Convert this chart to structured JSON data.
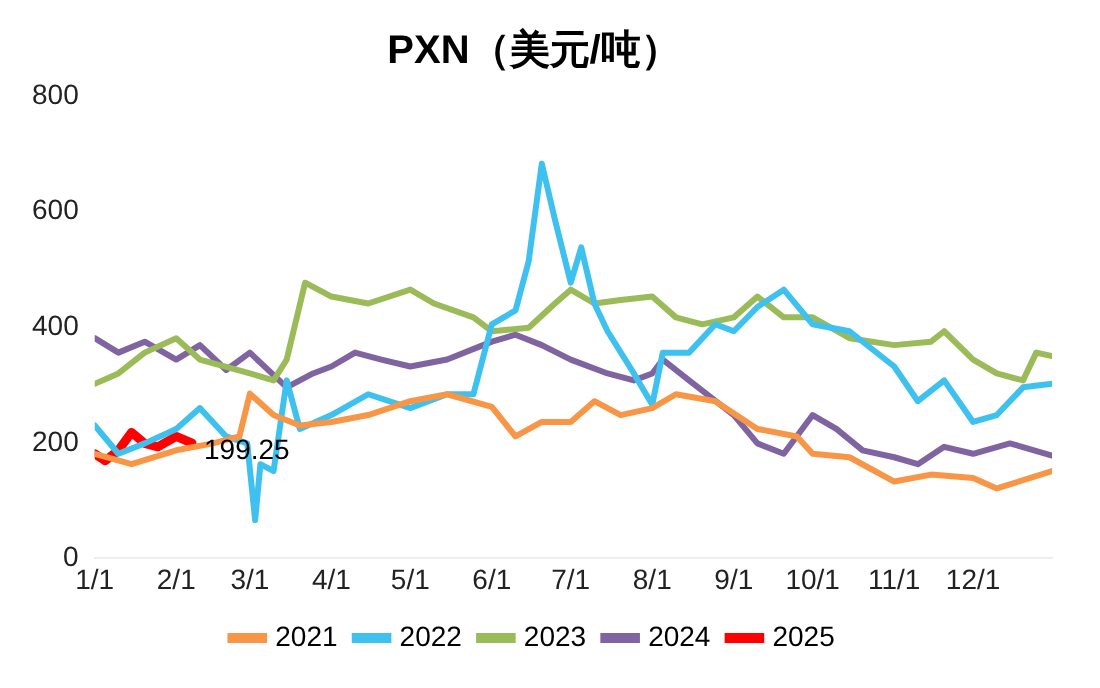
{
  "chart_data": {
    "type": "line",
    "title": "PXN（美元/吨）",
    "xlim": [
      "--01-01",
      "--12-31"
    ],
    "xticks": [
      {
        "value": "--01-01",
        "label": "1/1"
      },
      {
        "value": "--02-01",
        "label": "2/1"
      },
      {
        "value": "--03-01",
        "label": "3/1"
      },
      {
        "value": "--04-01",
        "label": "4/1"
      },
      {
        "value": "--05-01",
        "label": "5/1"
      },
      {
        "value": "--06-01",
        "label": "6/1"
      },
      {
        "value": "--07-01",
        "label": "7/1"
      },
      {
        "value": "--08-01",
        "label": "8/1"
      },
      {
        "value": "--09-01",
        "label": "9/1"
      },
      {
        "value": "--10-01",
        "label": "10/1"
      },
      {
        "value": "--11-01",
        "label": "11/1"
      },
      {
        "value": "--12-01",
        "label": "12/1"
      }
    ],
    "ylim": [
      0,
      800
    ],
    "yticks": [
      0,
      200,
      400,
      600,
      800
    ],
    "grid": false,
    "legend": "bottom",
    "marker": "none",
    "line_style": "solid",
    "series": [
      {
        "name": "2021",
        "color": "#f79646",
        "x": [
          "--01-01",
          "--01-15",
          "--02-01",
          "--02-15",
          "--02-25",
          "--03-01",
          "--03-10",
          "--03-20",
          "--04-01",
          "--04-15",
          "--05-01",
          "--05-15",
          "--06-01",
          "--06-10",
          "--06-20",
          "--07-01",
          "--07-10",
          "--07-20",
          "--08-01",
          "--08-10",
          "--08-25",
          "--09-10",
          "--09-25",
          "--10-01",
          "--10-15",
          "--11-01",
          "--11-15",
          "--12-01",
          "--12-10",
          "--12-31"
        ],
        "values": [
          181,
          163,
          187,
          199,
          211,
          285,
          248,
          230,
          236,
          248,
          272,
          284,
          262,
          211,
          236,
          236,
          272,
          248,
          260,
          284,
          272,
          224,
          211,
          181,
          175,
          133,
          145,
          139,
          121,
          151
        ]
      },
      {
        "name": "2022",
        "color": "#3fc1f0",
        "x": [
          "--01-01",
          "--01-10",
          "--01-20",
          "--02-01",
          "--02-10",
          "--02-20",
          "--02-28",
          "--03-03",
          "--03-05",
          "--03-10",
          "--03-15",
          "--03-20",
          "--04-01",
          "--04-15",
          "--05-01",
          "--05-15",
          "--05-25",
          "--06-01",
          "--06-10",
          "--06-15",
          "--06-20",
          "--06-25",
          "--07-01",
          "--07-05",
          "--07-10",
          "--07-15",
          "--07-25",
          "--08-01",
          "--08-05",
          "--08-15",
          "--08-25",
          "--09-01",
          "--09-10",
          "--09-20",
          "--10-01",
          "--10-15",
          "--11-01",
          "--11-10",
          "--11-20",
          "--12-01",
          "--12-10",
          "--12-20",
          "--12-31"
        ],
        "values": [
          230,
          181,
          199,
          224,
          260,
          211,
          199,
          66,
          163,
          151,
          308,
          224,
          248,
          284,
          260,
          284,
          284,
          405,
          429,
          514,
          683,
          586,
          477,
          538,
          441,
          393,
          320,
          266,
          356,
          356,
          405,
          393,
          435,
          465,
          405,
          393,
          332,
          272,
          308,
          236,
          248,
          296,
          302
        ]
      },
      {
        "name": "2023",
        "color": "#9bbb59",
        "x": [
          "--01-01",
          "--01-10",
          "--01-20",
          "--02-01",
          "--02-10",
          "--03-01",
          "--03-10",
          "--03-15",
          "--03-22",
          "--04-01",
          "--04-15",
          "--05-01",
          "--05-10",
          "--05-25",
          "--06-01",
          "--06-15",
          "--06-25",
          "--07-01",
          "--07-10",
          "--07-20",
          "--08-01",
          "--08-10",
          "--08-20",
          "--09-01",
          "--09-10",
          "--09-20",
          "--10-01",
          "--10-15",
          "--11-01",
          "--11-15",
          "--11-20",
          "--12-01",
          "--12-10",
          "--12-20",
          "--12-25",
          "--12-31"
        ],
        "values": [
          302,
          320,
          356,
          381,
          344,
          320,
          308,
          344,
          477,
          453,
          441,
          465,
          441,
          417,
          393,
          399,
          441,
          465,
          441,
          447,
          453,
          417,
          405,
          417,
          453,
          417,
          417,
          381,
          369,
          375,
          393,
          344,
          320,
          308,
          356,
          350
        ]
      },
      {
        "name": "2024",
        "color": "#8064a2",
        "x": [
          "--01-01",
          "--01-10",
          "--01-20",
          "--02-01",
          "--02-10",
          "--02-20",
          "--03-01",
          "--03-15",
          "--03-25",
          "--04-01",
          "--04-10",
          "--04-20",
          "--05-01",
          "--05-15",
          "--06-01",
          "--06-10",
          "--06-20",
          "--07-01",
          "--07-15",
          "--07-25",
          "--08-01",
          "--08-05",
          "--08-15",
          "--09-01",
          "--09-10",
          "--09-20",
          "--10-01",
          "--10-10",
          "--10-20",
          "--11-01",
          "--11-10",
          "--11-20",
          "--12-01",
          "--12-15",
          "--12-31"
        ],
        "values": [
          381,
          356,
          375,
          344,
          369,
          326,
          356,
          296,
          320,
          332,
          356,
          344,
          332,
          344,
          375,
          387,
          369,
          344,
          320,
          308,
          320,
          344,
          308,
          248,
          199,
          181,
          248,
          224,
          187,
          175,
          163,
          193,
          181,
          199,
          178
        ]
      },
      {
        "name": "2025",
        "color": "#ff0000",
        "x": [
          "--01-01",
          "--01-05",
          "--01-10",
          "--01-15",
          "--01-20",
          "--01-25",
          "--02-01",
          "--02-07"
        ],
        "values": [
          181,
          169,
          187,
          218,
          199,
          193,
          211,
          199.25
        ]
      }
    ],
    "annotations": [
      {
        "text": "199.25",
        "x": "--02-07",
        "y": 199.25
      }
    ]
  }
}
